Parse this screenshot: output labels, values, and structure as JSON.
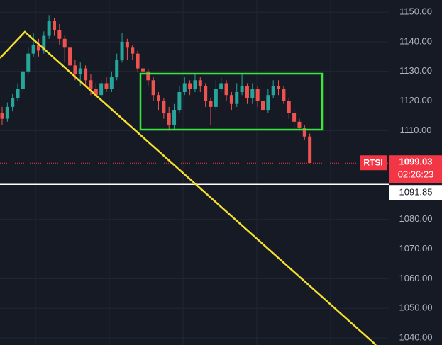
{
  "chart_data": {
    "type": "candlestick",
    "open": [
      1116,
      1114,
      1118,
      1121,
      1124,
      1130,
      1136,
      1139,
      1137,
      1142,
      1147,
      1144,
      1141,
      1138,
      1132,
      1129,
      1131,
      1127,
      1124,
      1122,
      1126,
      1124,
      1128,
      1134,
      1140,
      1138,
      1136,
      1131,
      1130,
      1127,
      1122,
      1120,
      1116,
      1112,
      1117,
      1123,
      1126,
      1124,
      1127,
      1125,
      1120,
      1118,
      1124,
      1126,
      1122,
      1119,
      1123,
      1125,
      1121,
      1124,
      1120,
      1117,
      1122,
      1125,
      1124,
      1120,
      1116,
      1113,
      1111,
      1108
    ],
    "high": [
      1118,
      1119.5,
      1122.5,
      1126,
      1131,
      1138,
      1143,
      1141,
      1143.5,
      1149,
      1148,
      1146,
      1142,
      1139,
      1134,
      1133,
      1132,
      1129,
      1126,
      1127,
      1128,
      1130,
      1136,
      1143,
      1141,
      1139,
      1137,
      1133,
      1131,
      1128,
      1123,
      1121,
      1118,
      1119,
      1125,
      1128,
      1127,
      1129,
      1128,
      1126,
      1121,
      1127,
      1128,
      1127,
      1123,
      1126,
      1129,
      1126,
      1126,
      1125,
      1121,
      1124,
      1127,
      1127,
      1125,
      1121,
      1117,
      1114,
      1112,
      1109
    ],
    "low": [
      1112,
      1113,
      1116.5,
      1120,
      1123,
      1129,
      1135,
      1135,
      1136,
      1141,
      1142,
      1139,
      1133,
      1130,
      1127,
      1125,
      1125,
      1122,
      1121,
      1121,
      1123,
      1123,
      1127,
      1133,
      1134,
      1134,
      1130,
      1128,
      1125,
      1120,
      1117,
      1114,
      1110,
      1110,
      1116,
      1122,
      1122,
      1123,
      1123,
      1118,
      1112,
      1117,
      1123,
      1120,
      1117,
      1118,
      1122,
      1119,
      1119,
      1118,
      1113,
      1116,
      1121,
      1122,
      1119,
      1114,
      1111,
      1110,
      1107,
      1099
    ],
    "close": [
      1114,
      1118,
      1121,
      1124,
      1130,
      1136,
      1139,
      1137,
      1142,
      1147,
      1144,
      1141,
      1138,
      1132,
      1129,
      1131,
      1127,
      1124,
      1122,
      1126,
      1124,
      1128,
      1134,
      1140,
      1138,
      1136,
      1131,
      1130,
      1127,
      1122,
      1120,
      1116,
      1112,
      1117,
      1123,
      1126,
      1124,
      1127,
      1125,
      1120,
      1118,
      1124,
      1126,
      1122,
      1119,
      1123,
      1125,
      1121,
      1124,
      1120,
      1117,
      1122,
      1125,
      1124,
      1120,
      1116,
      1113,
      1111,
      1108,
      1099.03
    ],
    "up_color": "#26a69a",
    "down_color": "#ef5350",
    "ylim": [
      1037.6,
      1154.1
    ],
    "yticks": [
      {
        "value": 1040,
        "label": "1040.00"
      },
      {
        "value": 1050,
        "label": "1050.00"
      },
      {
        "value": 1060,
        "label": "1060.00"
      },
      {
        "value": 1070,
        "label": "1070.00"
      },
      {
        "value": 1080,
        "label": "1080.00"
      },
      {
        "value": 1110,
        "label": "1110.00"
      },
      {
        "value": 1120,
        "label": "1120.00"
      },
      {
        "value": 1130,
        "label": "1130.00"
      },
      {
        "value": 1140,
        "label": "1140.00"
      },
      {
        "value": 1150,
        "label": "1150.00"
      }
    ],
    "grid": true,
    "symbol": "RTSI",
    "last_price": 1099.03,
    "countdown": "02:26:23",
    "level": 1091.85
  }
}
